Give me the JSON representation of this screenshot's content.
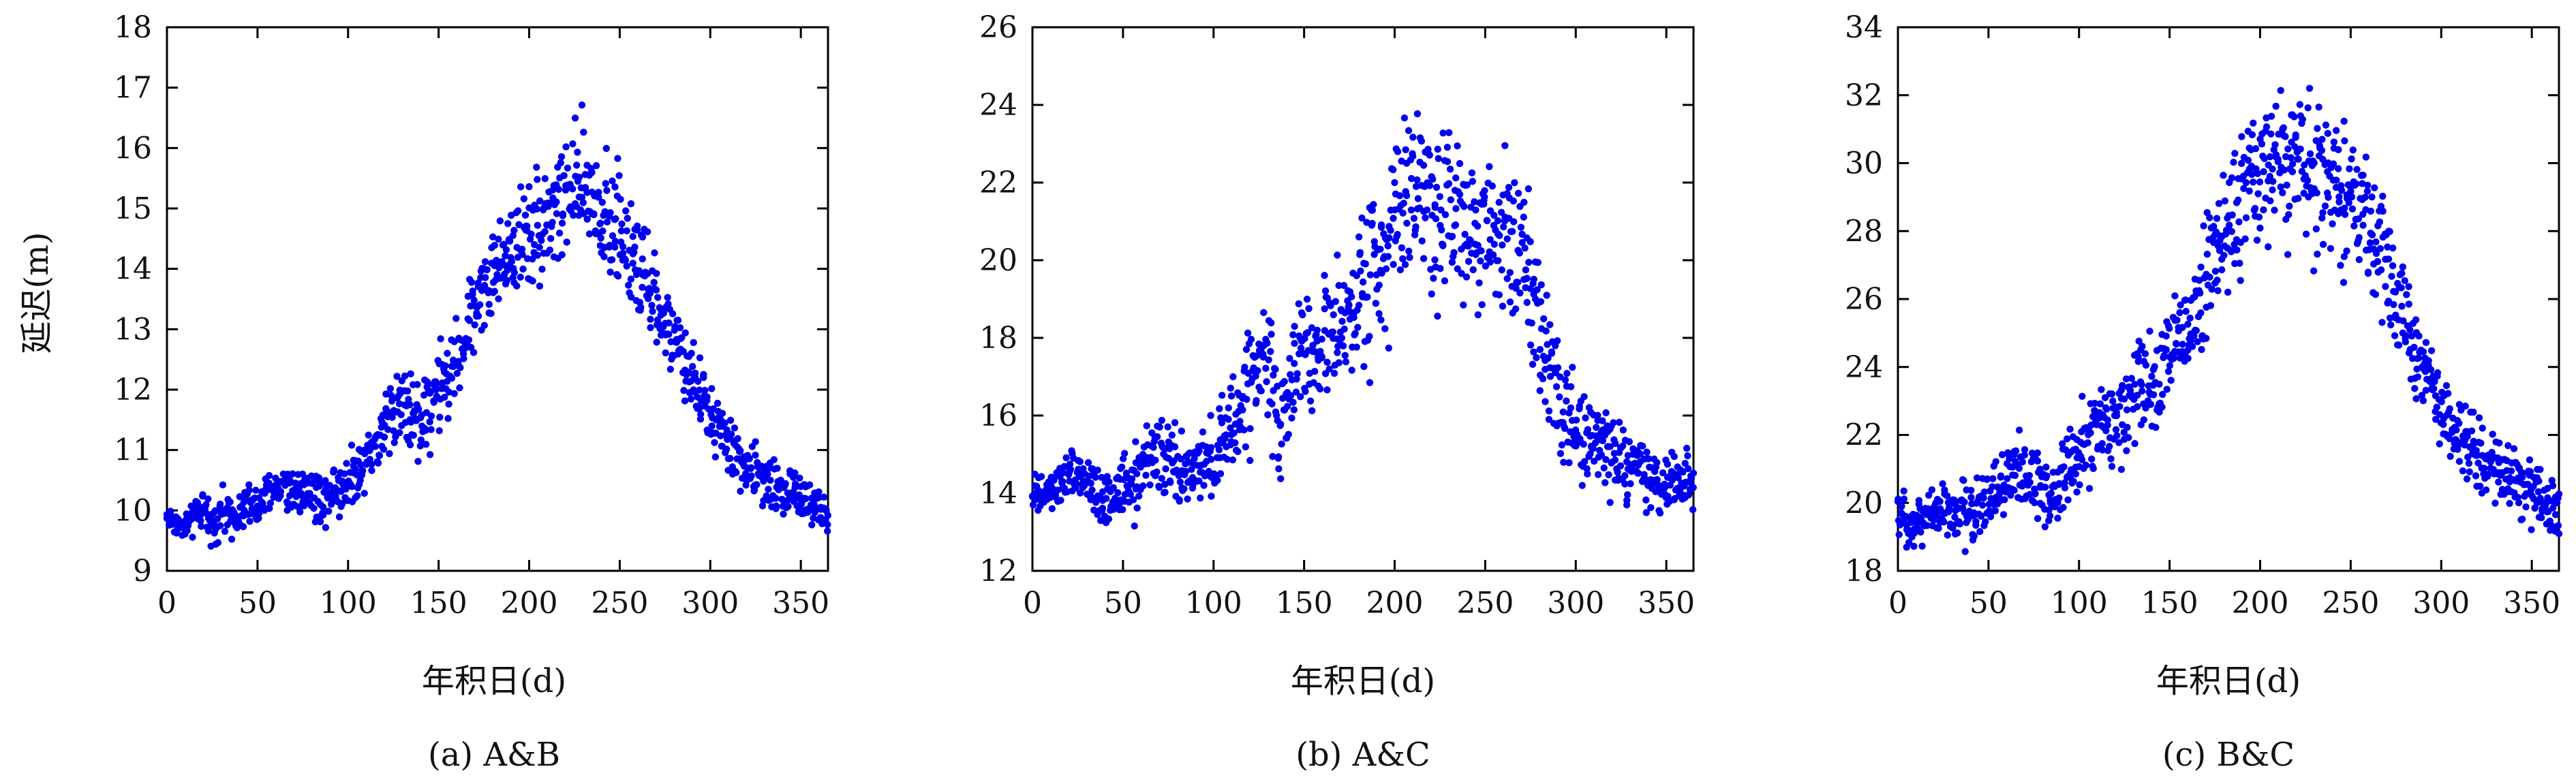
{
  "figure": {
    "panels": [
      {
        "caption": "(a) A&B",
        "xlabel": "年积日(d)",
        "ylabel": "延迟(m)"
      },
      {
        "caption": "(b) A&C",
        "xlabel": "年积日(d)",
        "ylabel": ""
      },
      {
        "caption": "(c) B&C",
        "xlabel": "年积日(d)",
        "ylabel": ""
      }
    ],
    "marker_color": "#0000ee"
  },
  "chart_data": [
    {
      "type": "scatter",
      "caption": "(a) A&B",
      "xlabel": "年积日(d)",
      "ylabel": "延迟(m)",
      "xlim": [
        0,
        365
      ],
      "ylim": [
        9,
        18
      ],
      "xticks": [
        0,
        50,
        100,
        150,
        200,
        250,
        300,
        350
      ],
      "yticks": [
        9,
        10,
        11,
        12,
        13,
        14,
        15,
        16,
        17,
        18
      ],
      "x": [
        0,
        5,
        10,
        15,
        20,
        25,
        30,
        35,
        40,
        45,
        50,
        55,
        60,
        65,
        70,
        75,
        80,
        85,
        90,
        95,
        100,
        105,
        110,
        115,
        120,
        125,
        130,
        135,
        140,
        145,
        150,
        155,
        160,
        165,
        170,
        175,
        180,
        185,
        190,
        195,
        200,
        205,
        210,
        215,
        220,
        225,
        230,
        235,
        240,
        245,
        250,
        255,
        260,
        265,
        270,
        275,
        280,
        285,
        290,
        295,
        300,
        305,
        310,
        315,
        320,
        325,
        330,
        335,
        340,
        345,
        350,
        355,
        360,
        365
      ],
      "y": [
        9.9,
        9.8,
        9.7,
        9.9,
        10.0,
        9.8,
        10.0,
        9.9,
        10.0,
        10.1,
        10.0,
        10.2,
        10.4,
        10.4,
        10.3,
        10.4,
        10.3,
        10.2,
        10.3,
        10.4,
        10.5,
        10.7,
        10.9,
        11.1,
        11.3,
        11.7,
        11.9,
        11.5,
        11.6,
        11.8,
        12.0,
        12.1,
        12.5,
        12.9,
        13.4,
        13.7,
        13.9,
        14.1,
        14.4,
        14.5,
        14.6,
        14.7,
        14.9,
        15.0,
        15.2,
        15.3,
        15.3,
        15.2,
        15.0,
        14.8,
        14.6,
        14.3,
        14.0,
        13.7,
        13.4,
        13.1,
        12.8,
        12.5,
        12.2,
        11.9,
        11.6,
        11.3,
        11.1,
        10.9,
        10.7,
        10.6,
        10.5,
        10.4,
        10.4,
        10.3,
        10.2,
        10.1,
        10.0,
        9.8
      ],
      "spread": [
        0.15,
        0.15,
        0.15,
        0.2,
        0.25,
        0.25,
        0.25,
        0.25,
        0.25,
        0.3,
        0.3,
        0.3,
        0.3,
        0.3,
        0.3,
        0.3,
        0.3,
        0.35,
        0.35,
        0.35,
        0.35,
        0.35,
        0.35,
        0.4,
        0.45,
        0.5,
        0.5,
        0.55,
        0.6,
        0.6,
        0.55,
        0.5,
        0.5,
        0.5,
        0.5,
        0.5,
        0.55,
        0.6,
        0.6,
        0.7,
        0.7,
        0.75,
        0.8,
        0.8,
        0.8,
        0.8,
        0.85,
        0.8,
        0.8,
        0.8,
        0.75,
        0.7,
        0.7,
        0.6,
        0.55,
        0.5,
        0.45,
        0.45,
        0.45,
        0.4,
        0.4,
        0.4,
        0.35,
        0.35,
        0.35,
        0.35,
        0.35,
        0.35,
        0.3,
        0.3,
        0.3,
        0.3,
        0.3,
        0.3
      ],
      "points_per_day": 3,
      "marker_color": "#0000ee"
    },
    {
      "type": "scatter",
      "caption": "(b) A&C",
      "xlabel": "年积日(d)",
      "ylabel": "",
      "xlim": [
        0,
        365
      ],
      "ylim": [
        12,
        26
      ],
      "xticks": [
        0,
        50,
        100,
        150,
        200,
        250,
        300,
        350
      ],
      "yticks": [
        12,
        14,
        16,
        18,
        20,
        22,
        24,
        26
      ],
      "x": [
        0,
        5,
        10,
        15,
        20,
        25,
        30,
        35,
        40,
        45,
        50,
        55,
        60,
        65,
        70,
        75,
        80,
        85,
        90,
        95,
        100,
        105,
        110,
        115,
        120,
        125,
        130,
        135,
        140,
        145,
        150,
        155,
        160,
        165,
        170,
        175,
        180,
        185,
        190,
        195,
        200,
        205,
        210,
        215,
        220,
        225,
        230,
        235,
        240,
        245,
        250,
        255,
        260,
        265,
        270,
        275,
        280,
        285,
        290,
        295,
        300,
        305,
        310,
        315,
        320,
        325,
        330,
        335,
        340,
        345,
        350,
        355,
        360,
        365
      ],
      "y": [
        14.0,
        13.9,
        14.0,
        14.2,
        14.4,
        14.5,
        14.2,
        14.0,
        13.8,
        13.9,
        14.2,
        14.4,
        14.6,
        14.9,
        15.0,
        14.8,
        14.6,
        14.5,
        14.5,
        14.6,
        14.9,
        15.2,
        15.6,
        16.2,
        16.8,
        17.4,
        17.6,
        16.0,
        16.2,
        17.2,
        17.5,
        17.6,
        17.8,
        18.0,
        18.2,
        18.5,
        19.0,
        19.5,
        20.0,
        20.6,
        21.2,
        21.6,
        21.8,
        21.8,
        21.6,
        21.4,
        21.3,
        21.2,
        21.1,
        21.0,
        21.0,
        20.9,
        20.8,
        20.6,
        20.2,
        19.5,
        18.5,
        17.5,
        16.8,
        16.2,
        15.8,
        15.5,
        15.3,
        15.2,
        15.0,
        14.8,
        14.6,
        14.5,
        14.4,
        14.3,
        14.2,
        14.2,
        14.3,
        14.2
      ],
      "spread": [
        0.4,
        0.4,
        0.4,
        0.4,
        0.5,
        0.5,
        0.5,
        0.5,
        0.5,
        0.5,
        0.6,
        0.7,
        0.7,
        0.7,
        0.7,
        0.7,
        0.7,
        0.7,
        0.7,
        0.7,
        0.8,
        0.9,
        1.0,
        1.1,
        1.2,
        1.3,
        1.3,
        1.2,
        1.2,
        1.1,
        1.1,
        1.1,
        1.1,
        1.2,
        1.3,
        1.4,
        1.5,
        1.6,
        1.7,
        1.7,
        1.7,
        1.7,
        1.7,
        1.8,
        1.8,
        1.8,
        1.8,
        1.7,
        1.6,
        1.5,
        1.5,
        1.5,
        1.5,
        1.5,
        1.5,
        1.5,
        1.4,
        1.3,
        1.2,
        1.1,
        1.0,
        0.9,
        0.8,
        0.8,
        0.7,
        0.7,
        0.7,
        0.7,
        0.6,
        0.6,
        0.6,
        0.6,
        0.6,
        0.6
      ],
      "points_per_day": 3,
      "marker_color": "#0000ee"
    },
    {
      "type": "scatter",
      "caption": "(c) B&C",
      "xlabel": "年积日(d)",
      "ylabel": "",
      "xlim": [
        0,
        365
      ],
      "ylim": [
        18,
        34
      ],
      "xticks": [
        0,
        50,
        100,
        150,
        200,
        250,
        300,
        350
      ],
      "yticks": [
        18,
        20,
        22,
        24,
        26,
        28,
        30,
        32,
        34
      ],
      "x": [
        0,
        5,
        10,
        15,
        20,
        25,
        30,
        35,
        40,
        45,
        50,
        55,
        60,
        65,
        70,
        75,
        80,
        85,
        90,
        95,
        100,
        105,
        110,
        115,
        120,
        125,
        130,
        135,
        140,
        145,
        150,
        155,
        160,
        165,
        170,
        175,
        180,
        185,
        190,
        195,
        200,
        205,
        210,
        215,
        220,
        225,
        230,
        235,
        240,
        245,
        250,
        255,
        260,
        265,
        270,
        275,
        280,
        285,
        290,
        295,
        300,
        305,
        310,
        315,
        320,
        325,
        330,
        335,
        340,
        345,
        350,
        355,
        360,
        365
      ],
      "y": [
        19.6,
        19.5,
        19.4,
        19.6,
        19.8,
        19.8,
        19.7,
        19.6,
        19.8,
        20.0,
        20.2,
        20.4,
        20.6,
        20.8,
        20.9,
        20.6,
        20.4,
        20.3,
        20.6,
        21.0,
        21.4,
        21.8,
        22.1,
        22.3,
        22.6,
        22.9,
        23.2,
        23.2,
        23.6,
        24.0,
        24.3,
        24.7,
        25.3,
        25.9,
        26.6,
        27.3,
        27.9,
        28.4,
        28.9,
        29.3,
        29.6,
        29.9,
        30.0,
        30.0,
        30.1,
        30.0,
        29.9,
        29.7,
        29.4,
        29.1,
        28.8,
        28.5,
        28.1,
        27.6,
        27.0,
        26.2,
        25.3,
        24.6,
        24.0,
        23.4,
        22.8,
        22.3,
        22.0,
        21.7,
        21.4,
        21.2,
        21.0,
        20.8,
        20.6,
        20.5,
        20.4,
        20.2,
        20.0,
        19.8
      ],
      "spread": [
        0.5,
        0.5,
        0.5,
        0.6,
        0.6,
        0.6,
        0.6,
        0.7,
        0.7,
        0.8,
        0.8,
        0.8,
        0.8,
        0.8,
        0.8,
        0.8,
        0.8,
        0.8,
        0.9,
        0.9,
        0.9,
        1.0,
        1.0,
        1.0,
        1.1,
        1.1,
        1.1,
        1.2,
        1.2,
        1.2,
        1.2,
        1.2,
        1.3,
        1.3,
        1.3,
        1.3,
        1.4,
        1.4,
        1.4,
        1.5,
        1.6,
        1.6,
        1.6,
        1.7,
        1.7,
        1.7,
        1.7,
        1.6,
        1.6,
        1.5,
        1.5,
        1.4,
        1.4,
        1.3,
        1.3,
        1.2,
        1.2,
        1.1,
        1.0,
        1.0,
        0.9,
        0.9,
        0.8,
        0.8,
        0.8,
        0.8,
        0.7,
        0.7,
        0.7,
        0.7,
        0.7,
        0.7,
        0.7,
        0.7
      ],
      "points_per_day": 3,
      "marker_color": "#0000ee"
    }
  ]
}
